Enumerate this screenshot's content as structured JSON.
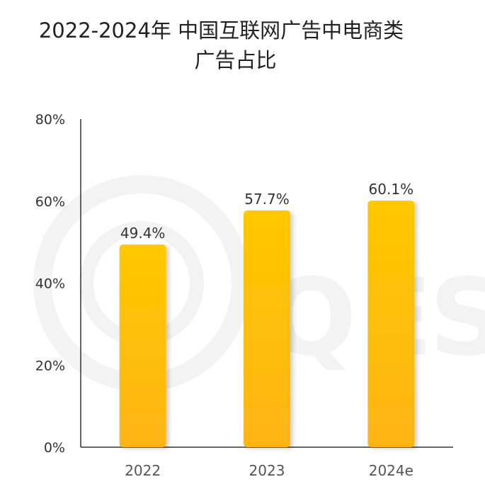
{
  "chart_data": {
    "type": "bar",
    "title_lines": [
      "2022-2024年 中国互联网广告中电商类",
      "广告占比"
    ],
    "categories": [
      "2022",
      "2023",
      "2024e"
    ],
    "values": [
      49.4,
      57.7,
      60.1
    ],
    "data_labels": [
      "49.4%",
      "57.7%",
      "60.1%"
    ],
    "y_ticks": [
      0,
      20,
      40,
      60,
      80
    ],
    "y_tick_labels": [
      "0%",
      "20%",
      "40%",
      "60%",
      "80%"
    ],
    "ylim": [
      0,
      80
    ],
    "xlabel": "",
    "ylabel": "",
    "grid": false,
    "legend": "none",
    "bar_color_top": "#FFC800",
    "bar_color_bottom": "#FDB515",
    "watermark_color": "#F3F3F3",
    "watermark_letters": [
      "Q",
      "E",
      "S"
    ]
  }
}
